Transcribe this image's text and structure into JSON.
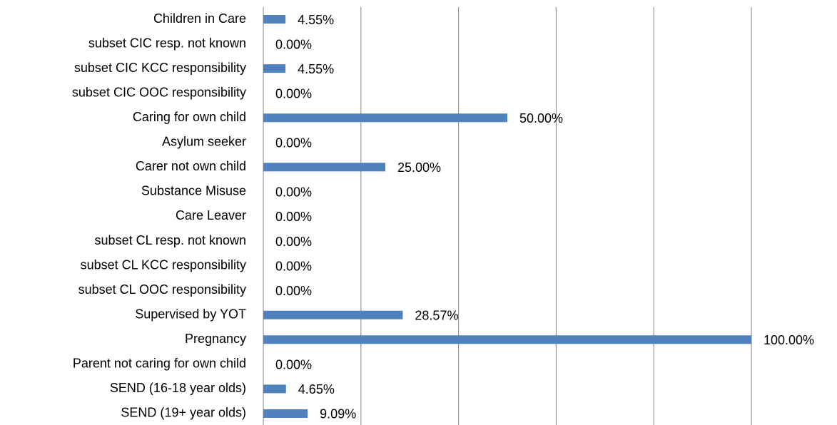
{
  "chart_data": {
    "type": "bar",
    "orientation": "horizontal",
    "categories": [
      "Children in Care",
      "subset CIC resp. not known",
      "subset CIC KCC responsibility",
      "subset CIC OOC responsibility",
      "Caring for own child",
      "Asylum seeker",
      "Carer not own child",
      "Substance Misuse",
      "Care Leaver",
      "subset CL resp. not known",
      "subset CL KCC responsibility",
      "subset CL OOC responsibility",
      "Supervised by YOT",
      "Pregnancy",
      "Parent not caring for own child",
      "SEND (16-18 year olds)",
      "SEND (19+ year olds)"
    ],
    "values": [
      4.55,
      0,
      4.55,
      0,
      50,
      0,
      25,
      0,
      0,
      0,
      0,
      0,
      28.57,
      100,
      0,
      4.65,
      9.09
    ],
    "value_labels": [
      "4.55%",
      "0.00%",
      "4.55%",
      "0.00%",
      "50.00%",
      "0.00%",
      "25.00%",
      "0.00%",
      "0.00%",
      "0.00%",
      "0.00%",
      "0.00%",
      "28.57%",
      "100.00%",
      "0.00%",
      "4.65%",
      "9.09%"
    ],
    "color": "#4f81bd",
    "xlim": [
      0,
      100
    ],
    "xticks": [
      0,
      20,
      40,
      60,
      80,
      100
    ],
    "grid": true
  }
}
